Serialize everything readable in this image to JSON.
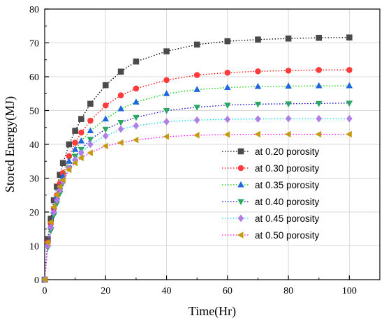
{
  "chart_data": {
    "type": "scatter",
    "xlabel": "Time(Hr)",
    "ylabel": "Stored Energy(MJ)",
    "xlim": [
      0,
      110
    ],
    "ylim": [
      0,
      80
    ],
    "xticks": [
      0,
      20,
      40,
      60,
      80,
      100
    ],
    "yticks": [
      0,
      10,
      20,
      30,
      40,
      50,
      60,
      70,
      80
    ],
    "grid": true,
    "legend_position": "right",
    "series": [
      {
        "name": "at 0.20 porosity",
        "marker": "square",
        "marker_color": "#4a4a4a",
        "line_color": "#000000",
        "x": [
          0,
          1,
          2,
          3,
          4,
          5,
          6,
          8,
          10,
          12,
          15,
          20,
          25,
          30,
          40,
          50,
          60,
          70,
          80,
          90,
          100
        ],
        "y": [
          0,
          12,
          18,
          23.5,
          27.5,
          31,
          34.5,
          40,
          44,
          47.5,
          52,
          57.5,
          61.5,
          64.5,
          67.5,
          69.5,
          70.5,
          71,
          71.3,
          71.5,
          71.6
        ]
      },
      {
        "name": "at 0.30 porosity",
        "marker": "circle",
        "marker_color": "#ff3b3b",
        "line_color": "#ff0000",
        "x": [
          0,
          1,
          2,
          3,
          4,
          5,
          6,
          8,
          10,
          12,
          15,
          20,
          25,
          30,
          40,
          50,
          60,
          70,
          80,
          90,
          100
        ],
        "y": [
          0,
          11,
          16.5,
          21,
          25,
          28.5,
          31.5,
          36.5,
          40.5,
          43.5,
          47,
          51.5,
          54.5,
          56.5,
          59,
          60.5,
          61.2,
          61.6,
          61.8,
          62,
          62
        ]
      },
      {
        "name": "at 0.35 porosity",
        "marker": "triangle-up",
        "marker_color": "#1f66e0",
        "line_color": "#00cc00",
        "x": [
          0,
          1,
          2,
          3,
          4,
          5,
          6,
          8,
          10,
          12,
          15,
          20,
          25,
          30,
          40,
          50,
          60,
          70,
          80,
          90,
          100
        ],
        "y": [
          0,
          10.5,
          16,
          20.5,
          24.5,
          27.5,
          30.5,
          35,
          38.5,
          41,
          44,
          47.5,
          50.5,
          52.5,
          55,
          56.2,
          56.8,
          57.1,
          57.2,
          57.3,
          57.3
        ]
      },
      {
        "name": "at 0.40 porosity",
        "marker": "triangle-down",
        "marker_color": "#2aa860",
        "line_color": "#0000cc",
        "x": [
          0,
          1,
          2,
          3,
          4,
          5,
          6,
          8,
          10,
          12,
          15,
          20,
          25,
          30,
          40,
          50,
          60,
          70,
          80,
          90,
          100
        ],
        "y": [
          0,
          9.5,
          14.5,
          19,
          22.5,
          25.5,
          28.5,
          33,
          36.5,
          38.5,
          41.5,
          44.5,
          46.5,
          48,
          50,
          51,
          51.6,
          51.9,
          52,
          52.1,
          52.2
        ]
      },
      {
        "name": "at 0.45 porosity",
        "marker": "diamond",
        "marker_color": "#b27fe6",
        "line_color": "#00d8ff",
        "x": [
          0,
          1,
          2,
          3,
          4,
          5,
          6,
          8,
          10,
          12,
          15,
          20,
          25,
          30,
          40,
          50,
          60,
          70,
          80,
          90,
          100
        ],
        "y": [
          0,
          10,
          15.5,
          20,
          23.5,
          26.5,
          29,
          33,
          35.5,
          37.5,
          40,
          42.5,
          44.5,
          45.5,
          46.7,
          47.2,
          47.4,
          47.5,
          47.6,
          47.6,
          47.6
        ]
      },
      {
        "name": "at 0.50 porosity",
        "marker": "triangle-left",
        "marker_color": "#c49a10",
        "line_color": "#ff00ff",
        "x": [
          0,
          1,
          2,
          3,
          4,
          5,
          6,
          8,
          10,
          12,
          15,
          20,
          25,
          30,
          40,
          50,
          60,
          70,
          80,
          90,
          100
        ],
        "y": [
          0,
          11,
          17,
          21.5,
          25,
          27.5,
          29.5,
          32.5,
          34.5,
          36,
          37.5,
          39.5,
          40.5,
          41.3,
          42.3,
          42.7,
          42.9,
          43,
          43,
          43,
          43
        ]
      }
    ]
  }
}
